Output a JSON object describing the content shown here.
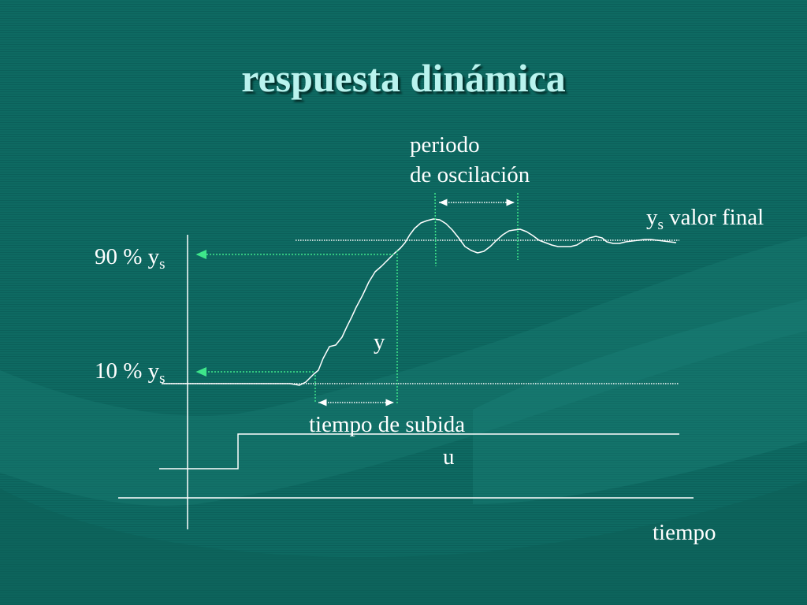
{
  "slide": {
    "title": "respuesta dinámica",
    "labels": {
      "period_line1": "periodo",
      "period_line2": "de oscilación",
      "final_value_var": "y",
      "final_value_sub": "s",
      "final_value_text": " valor final",
      "pct90_text": "90 % y",
      "pct90_sub": "s",
      "pct10_text": "10 % y",
      "pct10_sub": "s",
      "output_var": "y",
      "rise_time": "tiempo de subida",
      "input_var": "u",
      "time_axis": "tiempo"
    }
  },
  "colors": {
    "background": "#0e6a62",
    "title": "#b9f3ee",
    "line": "#ffffff",
    "marker": "#3ee68a"
  }
}
